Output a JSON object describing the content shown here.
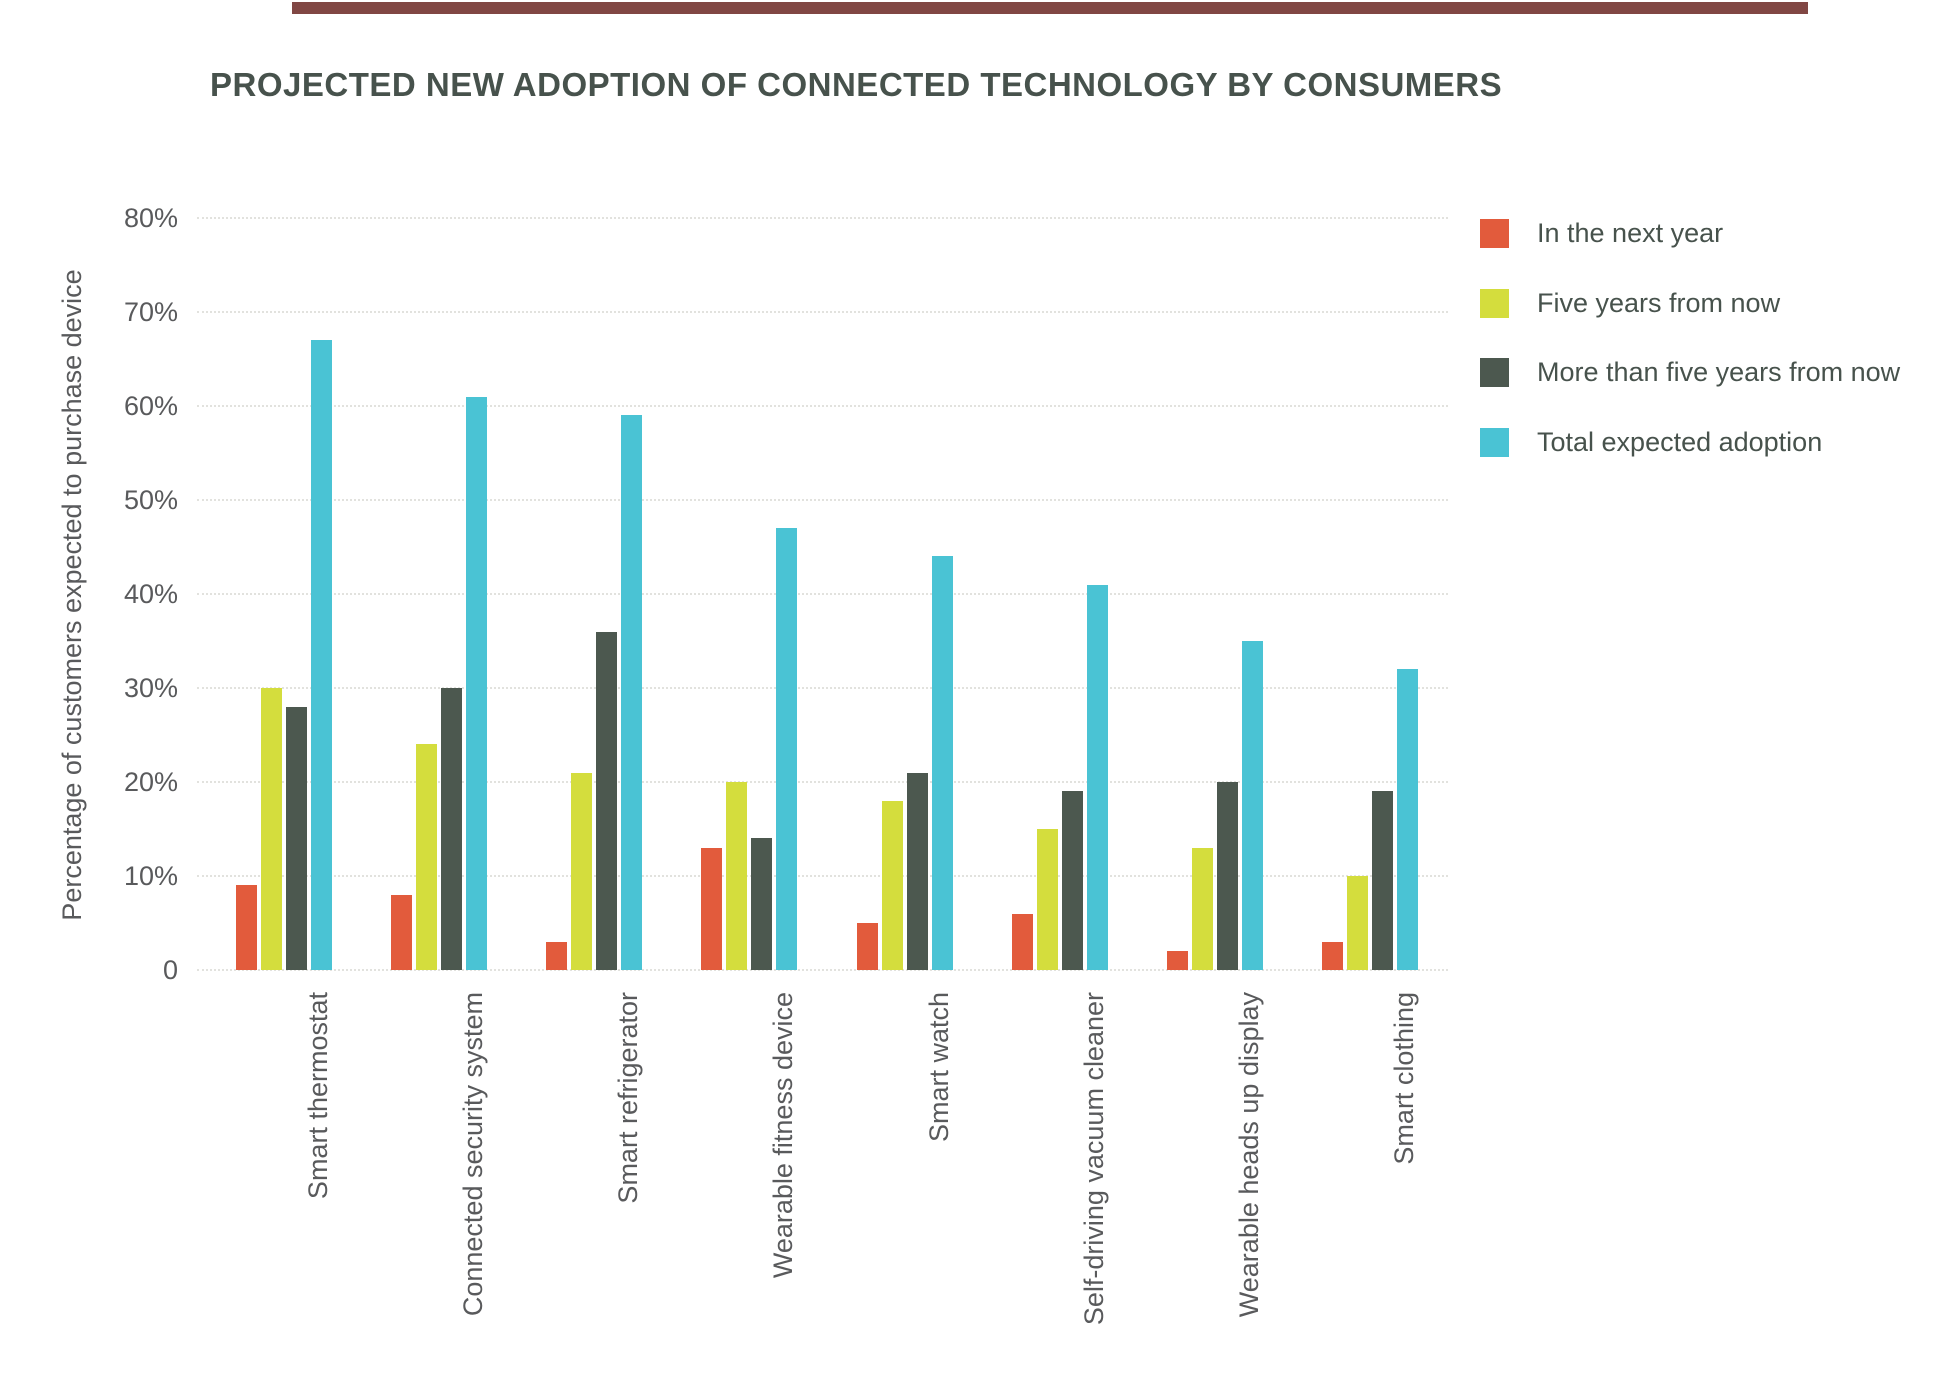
{
  "page": {
    "background": "#ffffff",
    "artifact_strip_color": "#5e1310"
  },
  "chart_data": {
    "type": "bar",
    "title": "PROJECTED NEW ADOPTION OF CONNECTED TECHNOLOGY BY CONSUMERS",
    "xlabel": "",
    "ylabel": "Percentage of customers expected to purchase device",
    "ylim": [
      0,
      80
    ],
    "ytick_step": 10,
    "ytick_labels": [
      "0",
      "10%",
      "20%",
      "30%",
      "40%",
      "50%",
      "60%",
      "70%",
      "80%"
    ],
    "grid": "horizontal-dotted",
    "legend_position": "upper-right",
    "categories": [
      "Smart thermostat",
      "Connected security system",
      "Smart refrigerator",
      "Wearable fitness device",
      "Smart watch",
      "Self-driving vacuum cleaner",
      "Wearable heads up display",
      "Smart clothing"
    ],
    "series": [
      {
        "name": "In the next year",
        "color": "#e25b3c",
        "values": [
          9,
          8,
          3,
          13,
          5,
          6,
          2,
          3
        ]
      },
      {
        "name": "Five years from now",
        "color": "#d4dd3d",
        "values": [
          30,
          24,
          21,
          20,
          18,
          15,
          13,
          10
        ]
      },
      {
        "name": "More than five years from now",
        "color": "#4c584f",
        "values": [
          28,
          30,
          36,
          14,
          21,
          19,
          20,
          19
        ]
      },
      {
        "name": "Total expected adoption",
        "color": "#4ac3d4",
        "values": [
          67,
          61,
          59,
          47,
          44,
          41,
          35,
          32
        ]
      }
    ],
    "colors": {
      "title_text": "#47524c",
      "axis_text": "#595a5c",
      "gridline": "#e2e2de"
    }
  }
}
